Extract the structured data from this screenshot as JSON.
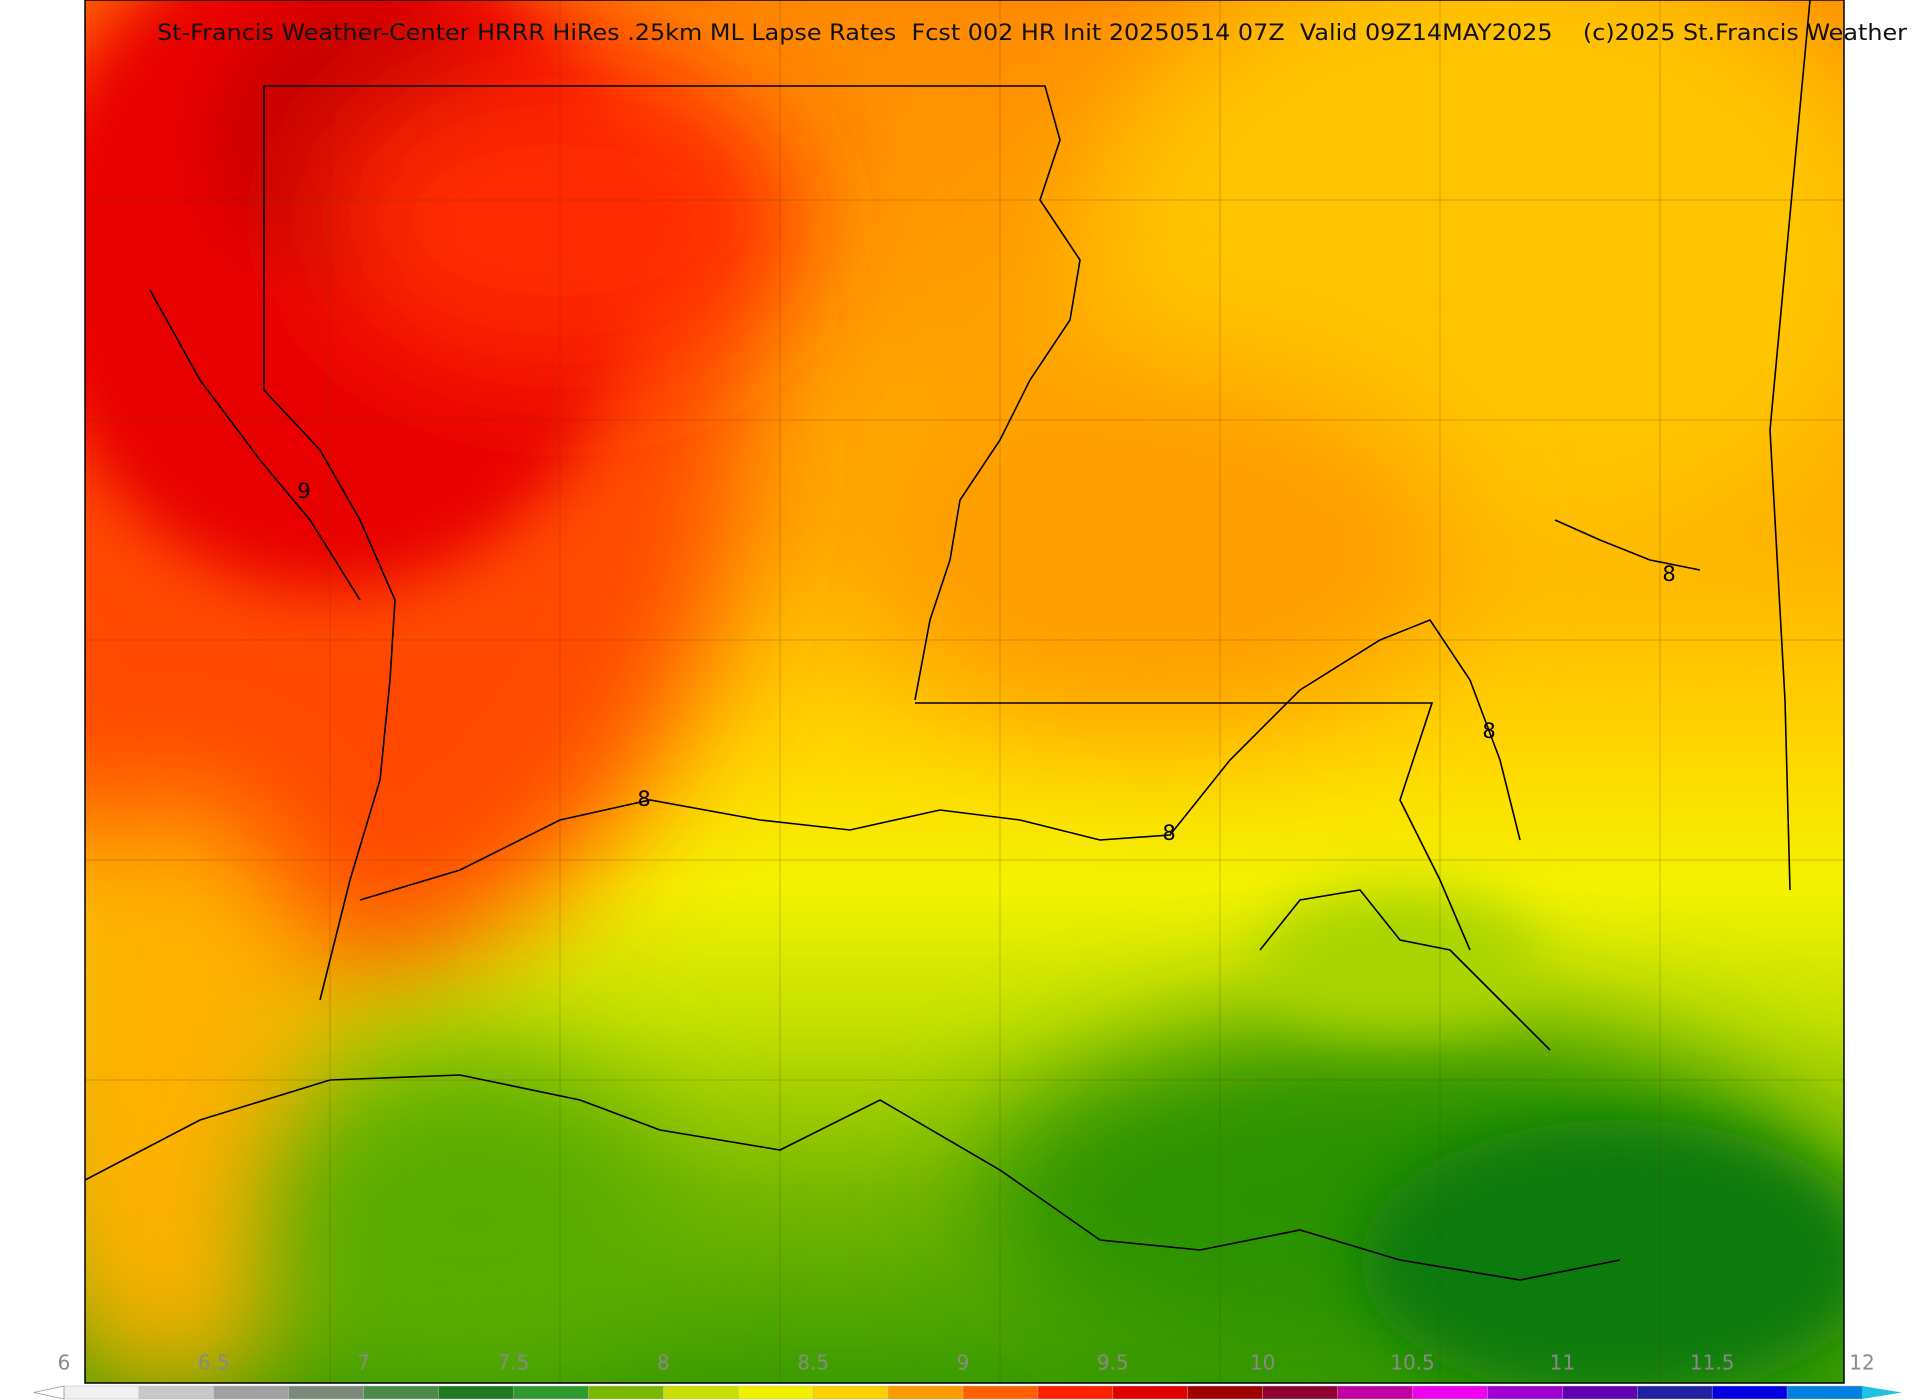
{
  "title": "St-Francis Weather-Center HRRR HiRes .25km ML Lapse Rates  Fcst 002 HR Init 20250514 07Z  Valid 09Z14MAY2025    (c)2025 St.Francis Weather",
  "contour_labels": [
    "9",
    "8",
    "8",
    "8",
    "8"
  ],
  "colorbar": {
    "ticks": [
      6,
      6.5,
      7,
      7.5,
      8,
      8.5,
      9,
      9.5,
      10,
      10.5,
      11,
      11.5,
      12
    ],
    "colors": [
      "#f0f0f0",
      "#c8c8c8",
      "#a0a0a0",
      "#7a8a7a",
      "#4a8a4a",
      "#1e7a1e",
      "#2e9a2e",
      "#7ab800",
      "#c8e000",
      "#f0f000",
      "#ffd000",
      "#ff9a00",
      "#ff6000",
      "#ff2000",
      "#e00000",
      "#a00000",
      "#900030",
      "#c000a0",
      "#f000f0",
      "#a000d0",
      "#6000b0",
      "#2020a0",
      "#0000e0",
      "#0080e0"
    ],
    "under_color": "#ffffff",
    "over_color": "#20c0e0"
  }
}
